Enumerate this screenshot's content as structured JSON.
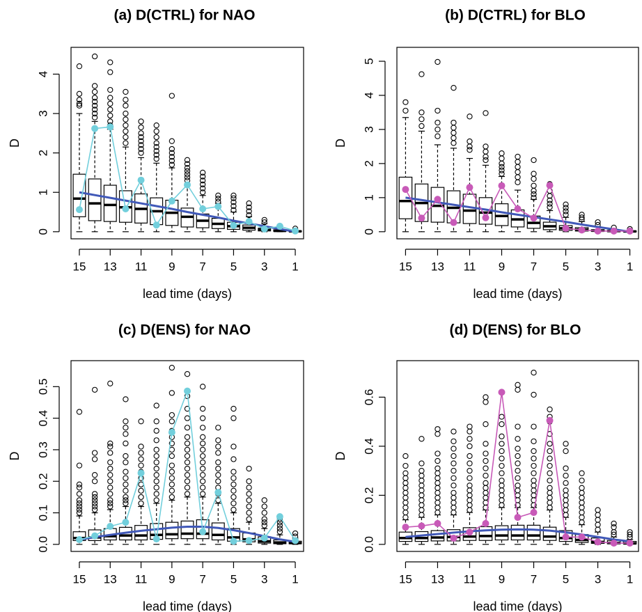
{
  "chart_data": [
    {
      "type": "boxplot",
      "title": "(a) D(CTRL) for  NAO",
      "xlabel": "lead time (days)",
      "ylabel": "D",
      "x_order": "descending",
      "x": [
        15,
        14,
        13,
        12,
        11,
        10,
        9,
        8,
        7,
        6,
        5,
        4,
        3,
        2,
        1
      ],
      "x_tick_labels": [
        "15",
        "13",
        "11",
        "9",
        "7",
        "5",
        "3",
        "1"
      ],
      "ylim": [
        0,
        4.5
      ],
      "y_ticks": [
        0,
        1,
        2,
        3,
        4
      ],
      "boxes": {
        "q1": [
          0.38,
          0.28,
          0.26,
          0.24,
          0.22,
          0.18,
          0.16,
          0.12,
          0.1,
          0.08,
          0.06,
          0.04,
          0.02,
          0.01,
          0.0
        ],
        "median": [
          0.84,
          0.72,
          0.68,
          0.62,
          0.58,
          0.52,
          0.48,
          0.38,
          0.28,
          0.2,
          0.14,
          0.1,
          0.05,
          0.02,
          0.01
        ],
        "q3": [
          1.46,
          1.34,
          1.18,
          1.04,
          0.96,
          0.86,
          0.8,
          0.6,
          0.45,
          0.34,
          0.24,
          0.17,
          0.09,
          0.05,
          0.02
        ],
        "whisker_low": [
          0,
          0,
          0,
          0,
          0,
          0,
          0,
          0,
          0,
          0,
          0,
          0,
          0,
          0,
          0
        ],
        "whisker_high": [
          3.0,
          2.8,
          2.6,
          2.15,
          1.88,
          1.74,
          1.62,
          1.22,
          0.92,
          0.72,
          0.5,
          0.38,
          0.2,
          0.1,
          0.05
        ]
      },
      "outliers": [
        [
          3.2,
          3.25,
          3.35,
          3.5,
          4.2
        ],
        [
          2.9,
          3.0,
          3.1,
          3.2,
          3.3,
          3.4,
          3.55,
          3.7,
          4.45
        ],
        [
          2.7,
          2.8,
          2.95,
          3.1,
          3.25,
          3.4,
          3.6,
          4.05,
          4.3
        ],
        [
          2.25,
          2.4,
          2.55,
          2.7,
          2.85,
          3.0,
          3.2,
          3.35,
          3.55
        ],
        [
          2.0,
          2.1,
          2.2,
          2.3,
          2.4,
          2.5,
          2.65,
          2.8
        ],
        [
          1.85,
          1.95,
          2.05,
          2.15,
          2.25,
          2.4,
          2.55,
          2.7
        ],
        [
          1.7,
          1.8,
          1.9,
          2.0,
          2.1,
          2.3,
          3.45
        ],
        [
          1.3,
          1.38,
          1.46,
          1.54,
          1.62,
          1.72,
          1.82
        ],
        [
          1.0,
          1.1,
          1.2,
          1.3,
          1.4,
          1.5
        ],
        [
          0.76,
          0.84,
          0.92
        ],
        [
          0.55,
          0.65,
          0.75,
          0.85,
          0.92
        ],
        [
          0.42,
          0.52,
          0.62,
          0.72
        ],
        [
          0.24,
          0.3
        ],
        [
          0.14
        ],
        [
          0.08
        ]
      ],
      "trend": {
        "color": "#4058b8",
        "values": [
          1.0,
          0.93,
          0.86,
          0.79,
          0.72,
          0.65,
          0.58,
          0.5,
          0.43,
          0.36,
          0.28,
          0.21,
          0.14,
          0.07,
          0.0
        ]
      },
      "highlight": {
        "color": "#72cfdc",
        "values": [
          0.56,
          2.62,
          2.66,
          0.58,
          1.31,
          0.17,
          0.78,
          1.19,
          0.58,
          0.64,
          0.16,
          0.26,
          0.07,
          0.14,
          0.02
        ]
      }
    },
    {
      "type": "boxplot",
      "title": "(b) D(CTRL) for  BLO",
      "xlabel": "lead time (days)",
      "ylabel": "D",
      "x_order": "descending",
      "x": [
        15,
        14,
        13,
        12,
        11,
        10,
        9,
        8,
        7,
        6,
        5,
        4,
        3,
        2,
        1
      ],
      "x_tick_labels": [
        "15",
        "13",
        "11",
        "9",
        "7",
        "5",
        "3",
        "1"
      ],
      "ylim": [
        0,
        5.2
      ],
      "y_ticks": [
        0,
        1,
        2,
        3,
        4,
        5
      ],
      "boxes": {
        "q1": [
          0.38,
          0.3,
          0.28,
          0.26,
          0.24,
          0.22,
          0.18,
          0.14,
          0.1,
          0.06,
          0.04,
          0.02,
          0.01,
          0.0,
          0.0
        ],
        "median": [
          0.9,
          0.84,
          0.76,
          0.7,
          0.62,
          0.56,
          0.46,
          0.36,
          0.26,
          0.16,
          0.1,
          0.06,
          0.03,
          0.02,
          0.01
        ],
        "q3": [
          1.6,
          1.4,
          1.3,
          1.2,
          1.1,
          1.0,
          0.82,
          0.64,
          0.46,
          0.28,
          0.18,
          0.12,
          0.06,
          0.04,
          0.02
        ],
        "whisker_low": [
          0,
          0,
          0,
          0,
          0,
          0,
          0,
          0,
          0,
          0,
          0,
          0,
          0,
          0,
          0
        ],
        "whisker_high": [
          3.35,
          2.95,
          2.55,
          2.45,
          2.15,
          1.95,
          1.62,
          1.22,
          0.95,
          0.62,
          0.42,
          0.3,
          0.15,
          0.08,
          0.05
        ]
      },
      "outliers": [
        [
          3.55,
          3.8
        ],
        [
          3.1,
          3.3,
          3.5,
          4.62
        ],
        [
          2.8,
          3.0,
          3.2,
          3.55,
          4.98
        ],
        [
          2.6,
          2.75,
          2.9,
          3.05,
          3.2,
          4.22
        ],
        [
          2.4,
          2.5,
          2.65,
          3.38
        ],
        [
          2.1,
          2.2,
          2.35,
          2.5,
          3.48
        ],
        [
          1.7,
          1.8,
          1.9,
          2.0,
          2.15,
          2.3
        ],
        [
          1.45,
          1.6,
          1.75,
          1.9,
          2.05,
          2.2
        ],
        [
          1.0,
          1.1,
          1.2,
          1.35,
          1.55,
          1.7,
          2.1
        ],
        [
          0.72,
          0.82,
          0.92,
          1.05,
          1.2,
          1.4
        ],
        [
          0.5,
          0.6,
          0.7,
          0.8
        ],
        [
          0.36,
          0.42,
          0.5
        ],
        [
          0.2,
          0.28
        ],
        [
          0.12
        ],
        [
          0.08
        ]
      ],
      "trend": {
        "color": "#4058b8",
        "values": [
          1.0,
          0.93,
          0.86,
          0.79,
          0.72,
          0.65,
          0.57,
          0.5,
          0.43,
          0.36,
          0.29,
          0.21,
          0.14,
          0.07,
          0.0
        ]
      },
      "highlight": {
        "color": "#c85ab8",
        "values": [
          1.24,
          0.4,
          0.95,
          0.27,
          1.3,
          0.41,
          1.35,
          0.67,
          0.4,
          1.36,
          0.1,
          0.05,
          0.02,
          0.02,
          0.02
        ]
      }
    },
    {
      "type": "boxplot",
      "title": "(c) D(ENS) for  NAO",
      "xlabel": "lead time (days)",
      "ylabel": "D",
      "x_order": "descending",
      "x": [
        15,
        14,
        13,
        12,
        11,
        10,
        9,
        8,
        7,
        6,
        5,
        4,
        3,
        2,
        1
      ],
      "x_tick_labels": [
        "15",
        "13",
        "11",
        "9",
        "7",
        "5",
        "3",
        "1"
      ],
      "ylim": [
        0,
        0.56
      ],
      "y_ticks": [
        0.0,
        0.1,
        0.2,
        0.3,
        0.4,
        0.5
      ],
      "y_tick_labels": [
        "0.0",
        "0.1",
        "0.2",
        "0.3",
        "0.4",
        "0.5"
      ],
      "boxes": {
        "q1": [
          0.012,
          0.012,
          0.014,
          0.014,
          0.014,
          0.016,
          0.018,
          0.018,
          0.018,
          0.014,
          0.01,
          0.008,
          0.004,
          0.002,
          0.002
        ],
        "median": [
          0.02,
          0.022,
          0.026,
          0.028,
          0.028,
          0.03,
          0.032,
          0.034,
          0.034,
          0.03,
          0.022,
          0.016,
          0.01,
          0.006,
          0.004
        ],
        "q3": [
          0.04,
          0.046,
          0.05,
          0.054,
          0.06,
          0.066,
          0.07,
          0.074,
          0.078,
          0.068,
          0.05,
          0.036,
          0.024,
          0.014,
          0.01
        ],
        "whisker_low": [
          0,
          0,
          0,
          0,
          0,
          0,
          0,
          0,
          0,
          0,
          0,
          0,
          0,
          0,
          0
        ],
        "whisker_high": [
          0.09,
          0.1,
          0.11,
          0.12,
          0.12,
          0.13,
          0.14,
          0.15,
          0.15,
          0.13,
          0.1,
          0.07,
          0.05,
          0.03,
          0.02
        ]
      },
      "outliers": [
        [
          0.1,
          0.11,
          0.12,
          0.13,
          0.14,
          0.16,
          0.18,
          0.19,
          0.25,
          0.42
        ],
        [
          0.11,
          0.12,
          0.13,
          0.14,
          0.15,
          0.16,
          0.2,
          0.22,
          0.27,
          0.29,
          0.49
        ],
        [
          0.12,
          0.13,
          0.14,
          0.16,
          0.18,
          0.2,
          0.22,
          0.24,
          0.26,
          0.29,
          0.31,
          0.32,
          0.51
        ],
        [
          0.13,
          0.14,
          0.15,
          0.17,
          0.19,
          0.21,
          0.23,
          0.26,
          0.28,
          0.32,
          0.35,
          0.37,
          0.39,
          0.46
        ],
        [
          0.13,
          0.15,
          0.17,
          0.19,
          0.21,
          0.23,
          0.25,
          0.27,
          0.29,
          0.31,
          0.39
        ],
        [
          0.14,
          0.16,
          0.18,
          0.2,
          0.22,
          0.24,
          0.26,
          0.28,
          0.3,
          0.33,
          0.36,
          0.39,
          0.44
        ],
        [
          0.15,
          0.17,
          0.19,
          0.21,
          0.23,
          0.25,
          0.28,
          0.3,
          0.32,
          0.34,
          0.36,
          0.39,
          0.41,
          0.48,
          0.56
        ],
        [
          0.16,
          0.18,
          0.2,
          0.22,
          0.24,
          0.26,
          0.28,
          0.3,
          0.32,
          0.34,
          0.37,
          0.4,
          0.43,
          0.47,
          0.54
        ],
        [
          0.16,
          0.18,
          0.2,
          0.22,
          0.24,
          0.26,
          0.28,
          0.3,
          0.32,
          0.34,
          0.37,
          0.4,
          0.43,
          0.5
        ],
        [
          0.14,
          0.16,
          0.18,
          0.2,
          0.22,
          0.24,
          0.26,
          0.29,
          0.31,
          0.33,
          0.37
        ],
        [
          0.11,
          0.13,
          0.15,
          0.17,
          0.19,
          0.21,
          0.23,
          0.27,
          0.31,
          0.4,
          0.43
        ],
        [
          0.08,
          0.1,
          0.12,
          0.14,
          0.16,
          0.18,
          0.2,
          0.24
        ],
        [
          0.06,
          0.07,
          0.08,
          0.1,
          0.12,
          0.14
        ],
        [
          0.04,
          0.05,
          0.06,
          0.07,
          0.08
        ],
        [
          0.025,
          0.035
        ]
      ],
      "trend": {
        "color": "#4058b8",
        "values": [
          0.015,
          0.023,
          0.03,
          0.037,
          0.043,
          0.048,
          0.053,
          0.056,
          0.056,
          0.052,
          0.045,
          0.036,
          0.026,
          0.016,
          0.008
        ]
      },
      "highlight": {
        "color": "#72cfdc",
        "values": [
          0.015,
          0.027,
          0.057,
          0.07,
          0.226,
          0.017,
          0.355,
          0.486,
          0.04,
          0.165,
          0.01,
          0.012,
          0.02,
          0.088,
          0.012
        ]
      }
    },
    {
      "type": "boxplot",
      "title": "(d) D(ENS) for  BLO",
      "xlabel": "lead time (days)",
      "ylabel": "D",
      "x_order": "descending",
      "x": [
        15,
        14,
        13,
        12,
        11,
        10,
        9,
        8,
        7,
        6,
        5,
        4,
        3,
        2,
        1
      ],
      "x_tick_labels": [
        "15",
        "13",
        "11",
        "9",
        "7",
        "5",
        "3",
        "1"
      ],
      "ylim": [
        0,
        0.72
      ],
      "y_ticks": [
        0.0,
        0.2,
        0.4,
        0.6
      ],
      "y_tick_labels": [
        "0.0",
        "0.2",
        "0.4",
        "0.6"
      ],
      "boxes": {
        "q1": [
          0.012,
          0.012,
          0.014,
          0.014,
          0.016,
          0.016,
          0.018,
          0.018,
          0.018,
          0.016,
          0.012,
          0.008,
          0.004,
          0.002,
          0.002
        ],
        "median": [
          0.026,
          0.026,
          0.028,
          0.03,
          0.032,
          0.034,
          0.036,
          0.036,
          0.036,
          0.032,
          0.026,
          0.018,
          0.01,
          0.006,
          0.004
        ],
        "q3": [
          0.05,
          0.052,
          0.056,
          0.06,
          0.068,
          0.072,
          0.076,
          0.078,
          0.078,
          0.07,
          0.056,
          0.04,
          0.026,
          0.016,
          0.012
        ],
        "whisker_low": [
          0,
          0,
          0,
          0,
          0,
          0,
          0,
          0,
          0,
          0,
          0,
          0,
          0,
          0,
          0
        ],
        "whisker_high": [
          0.1,
          0.11,
          0.12,
          0.12,
          0.13,
          0.14,
          0.15,
          0.15,
          0.15,
          0.14,
          0.11,
          0.08,
          0.05,
          0.03,
          0.02
        ]
      },
      "outliers": [
        [
          0.11,
          0.13,
          0.15,
          0.17,
          0.19,
          0.21,
          0.23,
          0.25,
          0.27,
          0.29,
          0.32,
          0.36
        ],
        [
          0.12,
          0.14,
          0.16,
          0.18,
          0.2,
          0.22,
          0.24,
          0.26,
          0.28,
          0.3,
          0.33,
          0.43
        ],
        [
          0.13,
          0.15,
          0.17,
          0.19,
          0.21,
          0.23,
          0.25,
          0.27,
          0.29,
          0.31,
          0.34,
          0.37,
          0.45,
          0.47
        ],
        [
          0.13,
          0.15,
          0.17,
          0.19,
          0.21,
          0.24,
          0.27,
          0.3,
          0.33,
          0.36,
          0.39,
          0.42,
          0.46
        ],
        [
          0.14,
          0.16,
          0.18,
          0.2,
          0.22,
          0.24,
          0.27,
          0.3,
          0.33,
          0.36,
          0.4,
          0.43,
          0.46,
          0.48
        ],
        [
          0.15,
          0.17,
          0.19,
          0.21,
          0.23,
          0.25,
          0.28,
          0.31,
          0.34,
          0.37,
          0.41,
          0.49,
          0.58,
          0.6
        ],
        [
          0.16,
          0.18,
          0.2,
          0.22,
          0.24,
          0.26,
          0.29,
          0.32,
          0.35,
          0.38,
          0.41,
          0.44,
          0.49,
          0.52
        ],
        [
          0.16,
          0.18,
          0.2,
          0.22,
          0.24,
          0.27,
          0.3,
          0.33,
          0.36,
          0.39,
          0.43,
          0.48,
          0.63,
          0.65
        ],
        [
          0.16,
          0.18,
          0.2,
          0.22,
          0.24,
          0.26,
          0.29,
          0.32,
          0.35,
          0.38,
          0.42,
          0.48,
          0.61,
          0.7
        ],
        [
          0.15,
          0.17,
          0.19,
          0.21,
          0.23,
          0.26,
          0.29,
          0.32,
          0.35,
          0.38,
          0.41,
          0.45,
          0.5,
          0.52,
          0.55
        ],
        [
          0.12,
          0.14,
          0.16,
          0.18,
          0.2,
          0.22,
          0.25,
          0.28,
          0.31,
          0.38,
          0.41
        ],
        [
          0.09,
          0.11,
          0.13,
          0.15,
          0.17,
          0.19,
          0.21,
          0.23,
          0.26,
          0.29
        ],
        [
          0.06,
          0.08,
          0.1,
          0.12,
          0.14
        ],
        [
          0.04,
          0.05,
          0.07,
          0.085
        ],
        [
          0.03,
          0.04,
          0.05
        ]
      ],
      "trend": {
        "color": "#4058b8",
        "values": [
          0.03,
          0.036,
          0.042,
          0.048,
          0.053,
          0.057,
          0.06,
          0.061,
          0.06,
          0.056,
          0.049,
          0.04,
          0.03,
          0.02,
          0.012
        ]
      },
      "highlight": {
        "color": "#c85ab8",
        "values": [
          0.07,
          0.075,
          0.085,
          0.025,
          0.05,
          0.085,
          0.62,
          0.11,
          0.13,
          0.505,
          0.03,
          0.03,
          0.01,
          0.005,
          0.005
        ]
      }
    }
  ]
}
